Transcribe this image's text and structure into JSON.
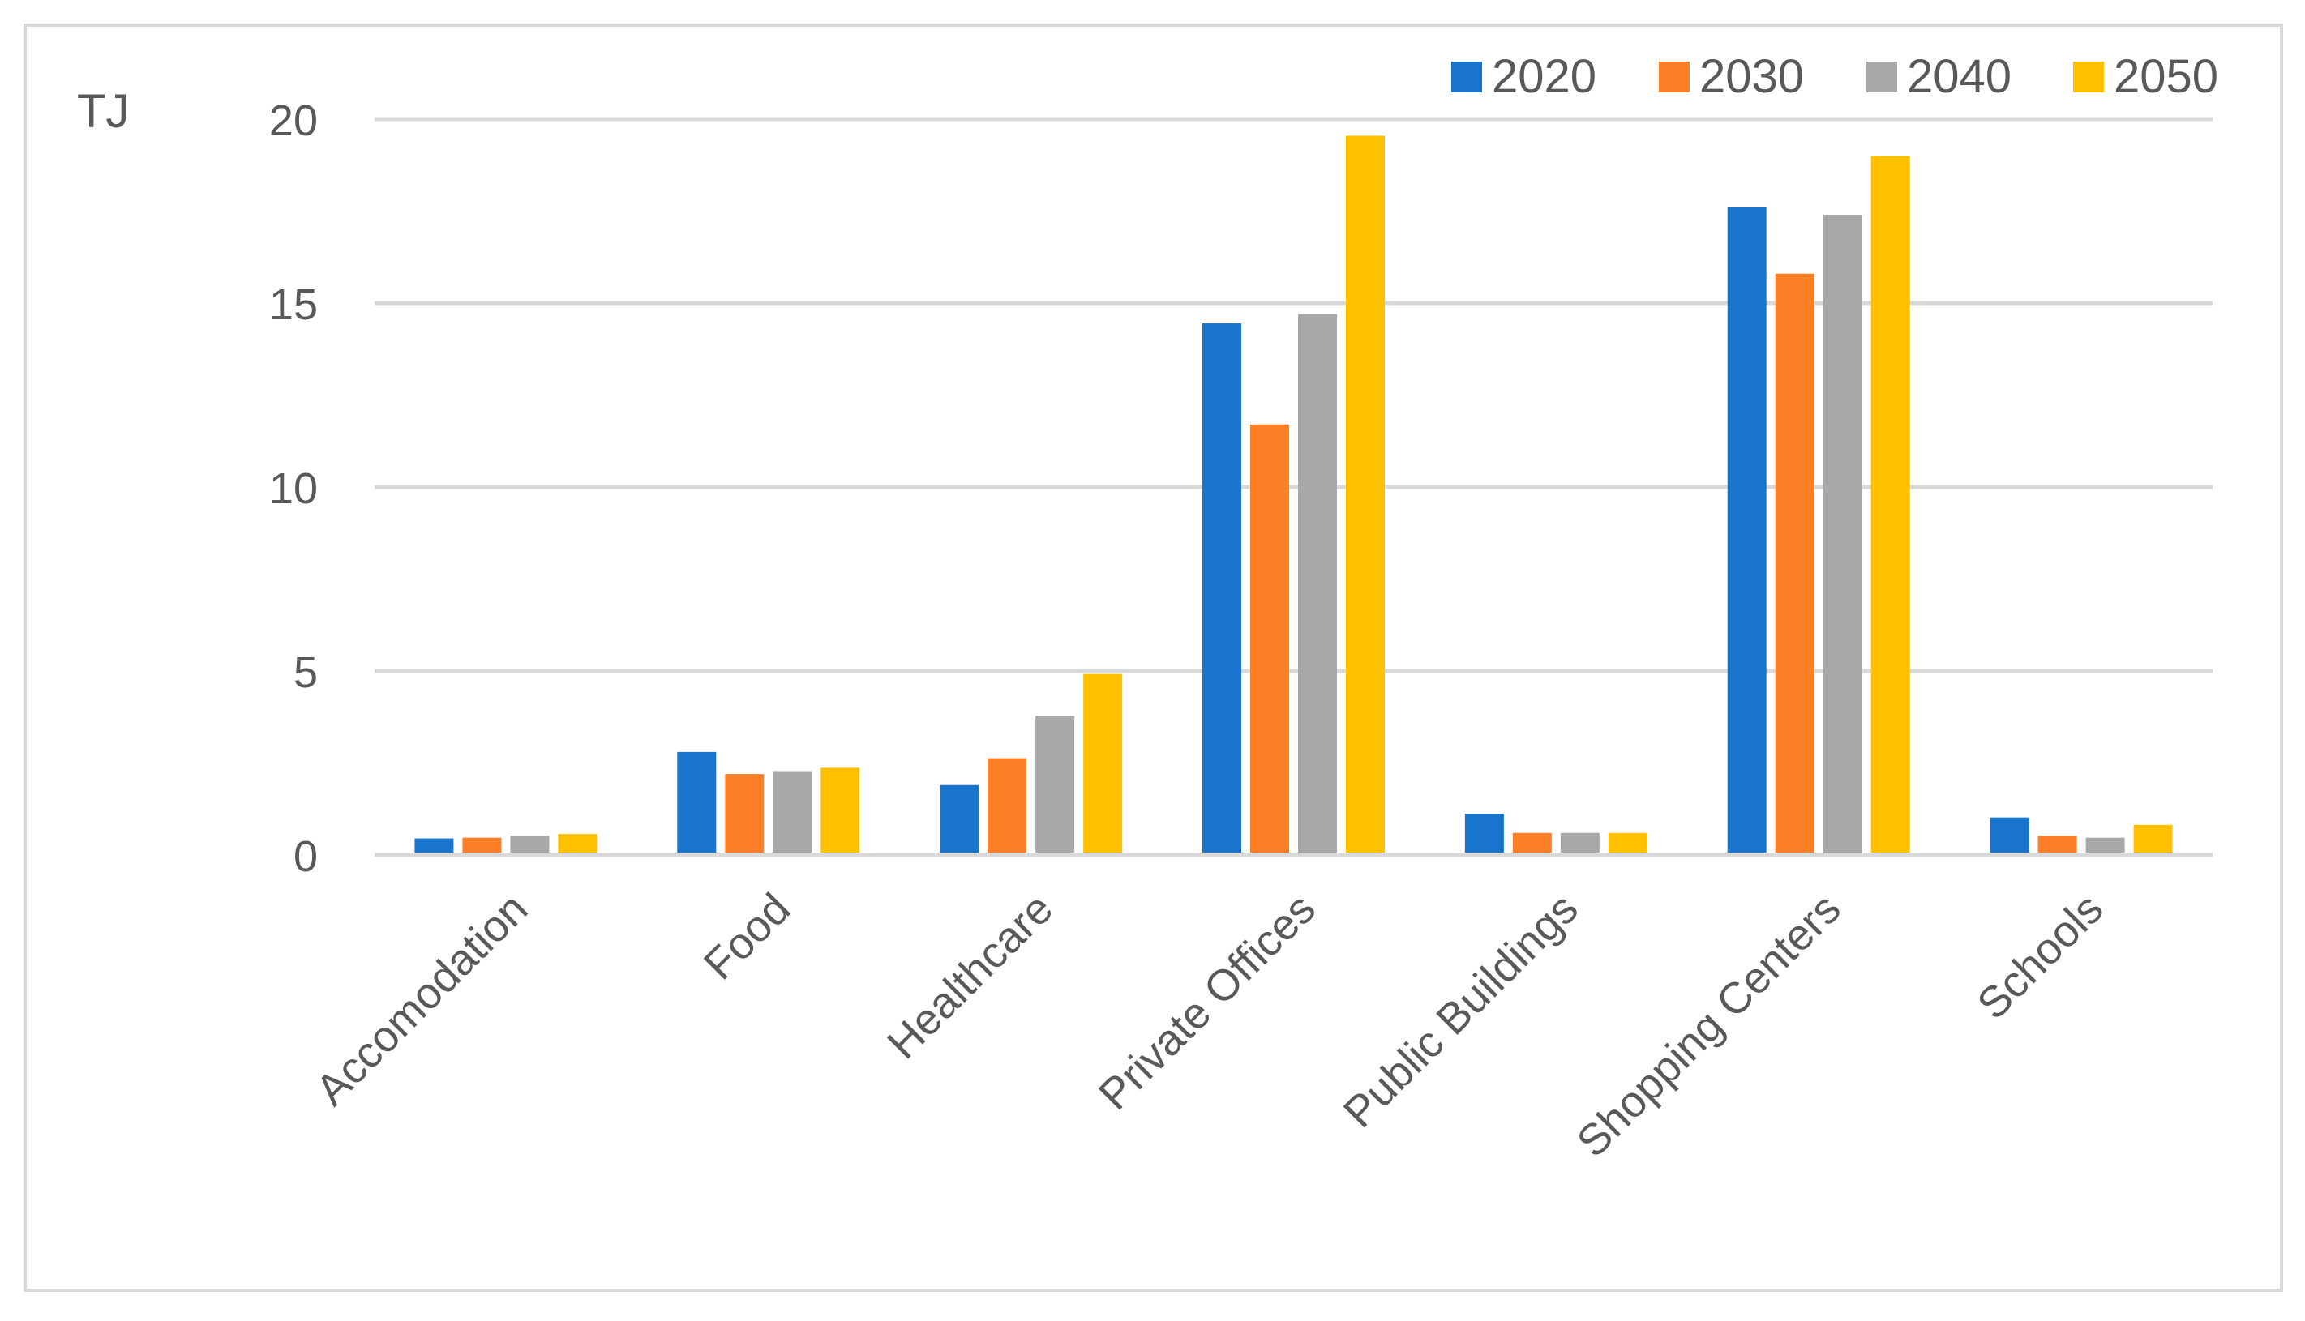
{
  "chart_data": {
    "type": "bar",
    "ylabel": "TJ",
    "ylim": [
      0,
      20
    ],
    "yticks": [
      "0",
      "5",
      "10",
      "15",
      "20"
    ],
    "grid": true,
    "legend_position": "top-right",
    "categories": [
      "Accomodation",
      "Food",
      "Healthcare",
      "Private Offices",
      "Public Buildings",
      "Shopping Centers",
      "Schools"
    ],
    "series": [
      {
        "name": "2020",
        "color": "#1874CD",
        "values": [
          0.45,
          2.8,
          1.9,
          14.45,
          1.12,
          17.6,
          1.02
        ]
      },
      {
        "name": "2030",
        "color": "#FF7F27",
        "values": [
          0.47,
          2.2,
          2.63,
          11.7,
          0.6,
          15.8,
          0.52
        ]
      },
      {
        "name": "2040",
        "color": "#A8A8A8",
        "values": [
          0.53,
          2.28,
          3.78,
          14.7,
          0.6,
          17.4,
          0.47
        ]
      },
      {
        "name": "2050",
        "color": "#FFC000",
        "values": [
          0.57,
          2.37,
          4.92,
          19.55,
          0.6,
          19.0,
          0.82
        ]
      }
    ]
  }
}
